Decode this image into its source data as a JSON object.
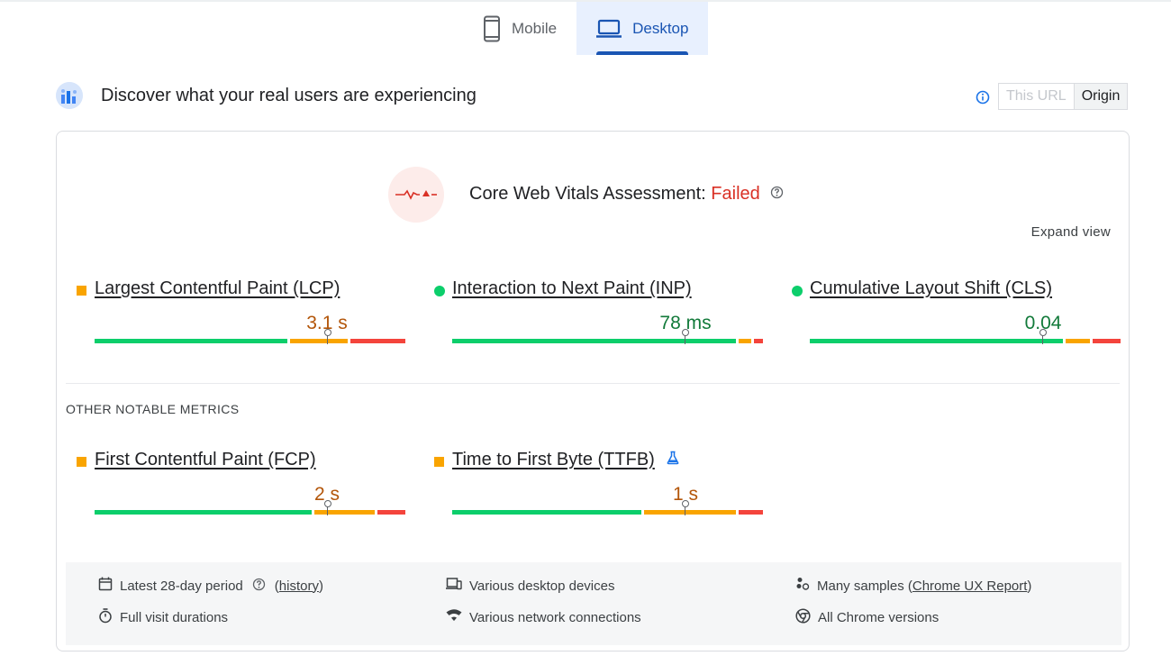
{
  "tabs": [
    {
      "label": "Mobile",
      "icon": "smartphone-icon",
      "active": false
    },
    {
      "label": "Desktop",
      "icon": "laptop-icon",
      "active": true
    }
  ],
  "header": {
    "title": "Discover what your real users are experiencing",
    "toggle": {
      "this_url": "This URL",
      "origin": "Origin",
      "selected": "Origin"
    }
  },
  "assessment": {
    "label": "Core Web Vitals Assessment:",
    "status": "Failed",
    "expand": "Expand view"
  },
  "core_metrics": [
    {
      "name": "Largest Contentful Paint (LCP)",
      "value": "3.1 s",
      "rating": "average",
      "distribution": {
        "good": 0.63,
        "needs_improvement": 0.19,
        "poor": 0.18
      },
      "percentile_position": 0.75
    },
    {
      "name": "Interaction to Next Paint (INP)",
      "value": "78 ms",
      "rating": "good",
      "distribution": {
        "good": 0.93,
        "needs_improvement": 0.04,
        "poor": 0.03
      },
      "percentile_position": 0.75
    },
    {
      "name": "Cumulative Layout Shift (CLS)",
      "value": "0.04",
      "rating": "good",
      "distribution": {
        "good": 0.83,
        "needs_improvement": 0.08,
        "poor": 0.09
      },
      "percentile_position": 0.75
    }
  ],
  "other_label": "OTHER NOTABLE METRICS",
  "other_metrics": [
    {
      "name": "First Contentful Paint (FCP)",
      "value": "2 s",
      "rating": "average",
      "distribution": {
        "good": 0.71,
        "needs_improvement": 0.2,
        "poor": 0.09
      },
      "percentile_position": 0.75
    },
    {
      "name": "Time to First Byte (TTFB)",
      "value": "1 s",
      "rating": "average",
      "distribution": {
        "good": 0.62,
        "needs_improvement": 0.3,
        "poor": 0.08
      },
      "percentile_position": 0.75,
      "experimental_icon": "flask-icon"
    }
  ],
  "footer": {
    "period": "Latest 28-day period",
    "history_link": "history",
    "devices": "Various desktop devices",
    "samples_prefix": "Many samples (",
    "samples_link": "Chrome UX Report",
    "samples_suffix": ")",
    "durations": "Full visit durations",
    "network": "Various network connections",
    "chrome": "All Chrome versions"
  },
  "colors": {
    "good": "#0cce6b",
    "average": "#f9a400",
    "poor": "#f4443c",
    "accent": "#1a55b3",
    "failed": "#d93025"
  }
}
